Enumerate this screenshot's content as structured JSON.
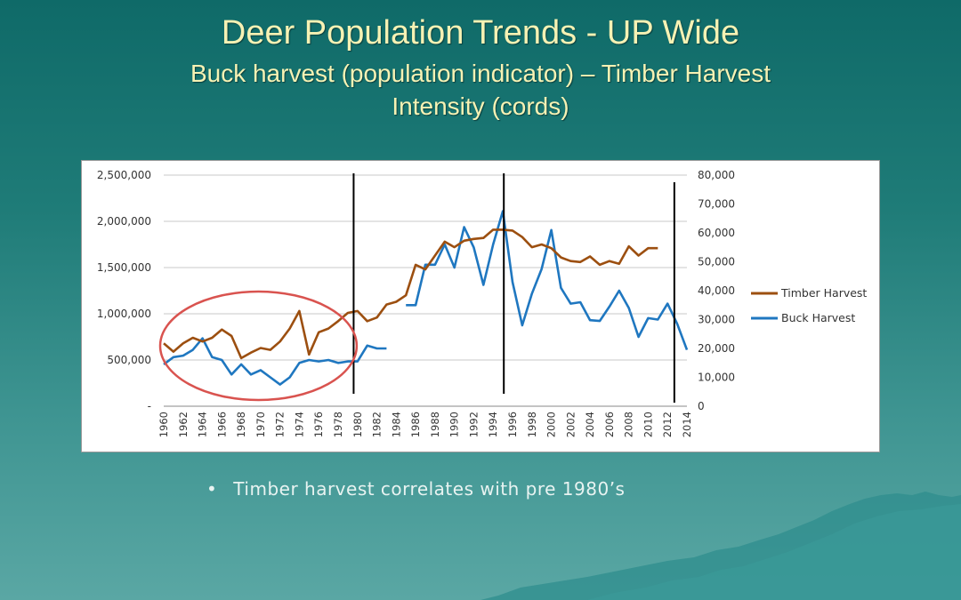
{
  "slide": {
    "title": "Deer Population Trends - UP Wide",
    "subtitle_line1": "Buck harvest (population indicator) – Timber Harvest",
    "subtitle_line2": "Intensity (cords)",
    "bullet": "Timber harvest correlates with pre 1980’s"
  },
  "colors": {
    "timber": "#9c4f10",
    "buck": "#1f77c0",
    "circle": "#d9534f",
    "gridline": "#c8c8c8",
    "marker_line": "#000000"
  },
  "chart_data": {
    "type": "line",
    "left_axis": {
      "ticks": [
        0,
        500000,
        1000000,
        1500000,
        2000000,
        2500000
      ],
      "tick_labels": [
        "-",
        "500,000",
        "1,000,000",
        "1,500,000",
        "2,000,000",
        "2,500,000"
      ],
      "range": [
        0,
        2500000
      ]
    },
    "right_axis": {
      "ticks": [
        0,
        10000,
        20000,
        30000,
        40000,
        50000,
        60000,
        70000,
        80000
      ],
      "tick_labels": [
        "0",
        "10,000",
        "20,000",
        "30,000",
        "40,000",
        "50,000",
        "60,000",
        "70,000",
        "80,000"
      ],
      "range": [
        0,
        80000
      ]
    },
    "x_range": [
      1960,
      2014
    ],
    "x_tick_labels": [
      "1960",
      "1962",
      "1964",
      "1966",
      "1968",
      "1970",
      "1972",
      "1974",
      "1976",
      "1978",
      "1980",
      "1982",
      "1984",
      "1986",
      "1988",
      "1990",
      "1992",
      "1994",
      "1996",
      "1998",
      "2000",
      "2002",
      "2004",
      "2006",
      "2008",
      "2010",
      "2012",
      "2014"
    ],
    "grid": true,
    "legend_position": "right",
    "series": [
      {
        "name": "Timber Harvest",
        "axis": "left",
        "x": [
          1960,
          1961,
          1962,
          1963,
          1964,
          1965,
          1966,
          1967,
          1968,
          1969,
          1970,
          1971,
          1972,
          1973,
          1974,
          1975,
          1976,
          1977,
          1978,
          1979,
          1980,
          1981,
          1982,
          1983,
          1984,
          1985,
          1986,
          1987,
          1988,
          1989,
          1990,
          1991,
          1992,
          1993,
          1994,
          1995,
          1996,
          1997,
          1998,
          1999,
          2000,
          2001,
          2002,
          2003,
          2004,
          2005,
          2006,
          2007,
          2008,
          2009,
          2010,
          2011
        ],
        "values": [
          680000,
          590000,
          680000,
          740000,
          700000,
          740000,
          830000,
          760000,
          520000,
          580000,
          630000,
          610000,
          700000,
          840000,
          1030000,
          560000,
          800000,
          840000,
          920000,
          1010000,
          1030000,
          920000,
          960000,
          1100000,
          1130000,
          1200000,
          1530000,
          1480000,
          1630000,
          1780000,
          1720000,
          1790000,
          1810000,
          1820000,
          1910000,
          1910000,
          1900000,
          1830000,
          1720000,
          1750000,
          1710000,
          1610000,
          1570000,
          1560000,
          1620000,
          1530000,
          1570000,
          1540000,
          1730000,
          1630000,
          1710000,
          1710000
        ]
      },
      {
        "name": "Buck Harvest",
        "axis": "right",
        "segments": [
          {
            "x": [
              1960,
              1961,
              1962,
              1963,
              1964,
              1965,
              1966,
              1967,
              1968,
              1969,
              1970,
              1971,
              1972,
              1973,
              1974,
              1975,
              1976,
              1977,
              1978,
              1979,
              1980,
              1981,
              1982,
              1983
            ],
            "values": [
              14500,
              17000,
              17500,
              19500,
              23500,
              17000,
              16000,
              11000,
              14500,
              11000,
              12500,
              10000,
              7500,
              10000,
              15000,
              16000,
              15500,
              16000,
              15000,
              15500,
              15500,
              21000,
              20000,
              20000
            ]
          },
          {
            "x": [
              1985,
              1986,
              1987,
              1988,
              1989,
              1990,
              1991,
              1992,
              1993,
              1994,
              1995,
              1996,
              1997,
              1998,
              1999,
              2000,
              2001,
              2002,
              2003,
              2004,
              2005,
              2006,
              2007,
              2008,
              2009,
              2010,
              2011,
              2012,
              2013,
              2014
            ],
            "values": [
              35000,
              35000,
              49000,
              49000,
              56000,
              48000,
              62000,
              55000,
              42000,
              56000,
              67500,
              43000,
              28000,
              39000,
              47500,
              61000,
              41000,
              35500,
              36000,
              29800,
              29500,
              34500,
              40000,
              34000,
              24000,
              30500,
              30000,
              35500,
              28500,
              19500
            ]
          }
        ]
      }
    ],
    "annotations": {
      "vertical_lines_years": [
        1979.6,
        1995.1,
        2012.7
      ],
      "ellipse_span_years": [
        1960,
        1979
      ]
    }
  }
}
